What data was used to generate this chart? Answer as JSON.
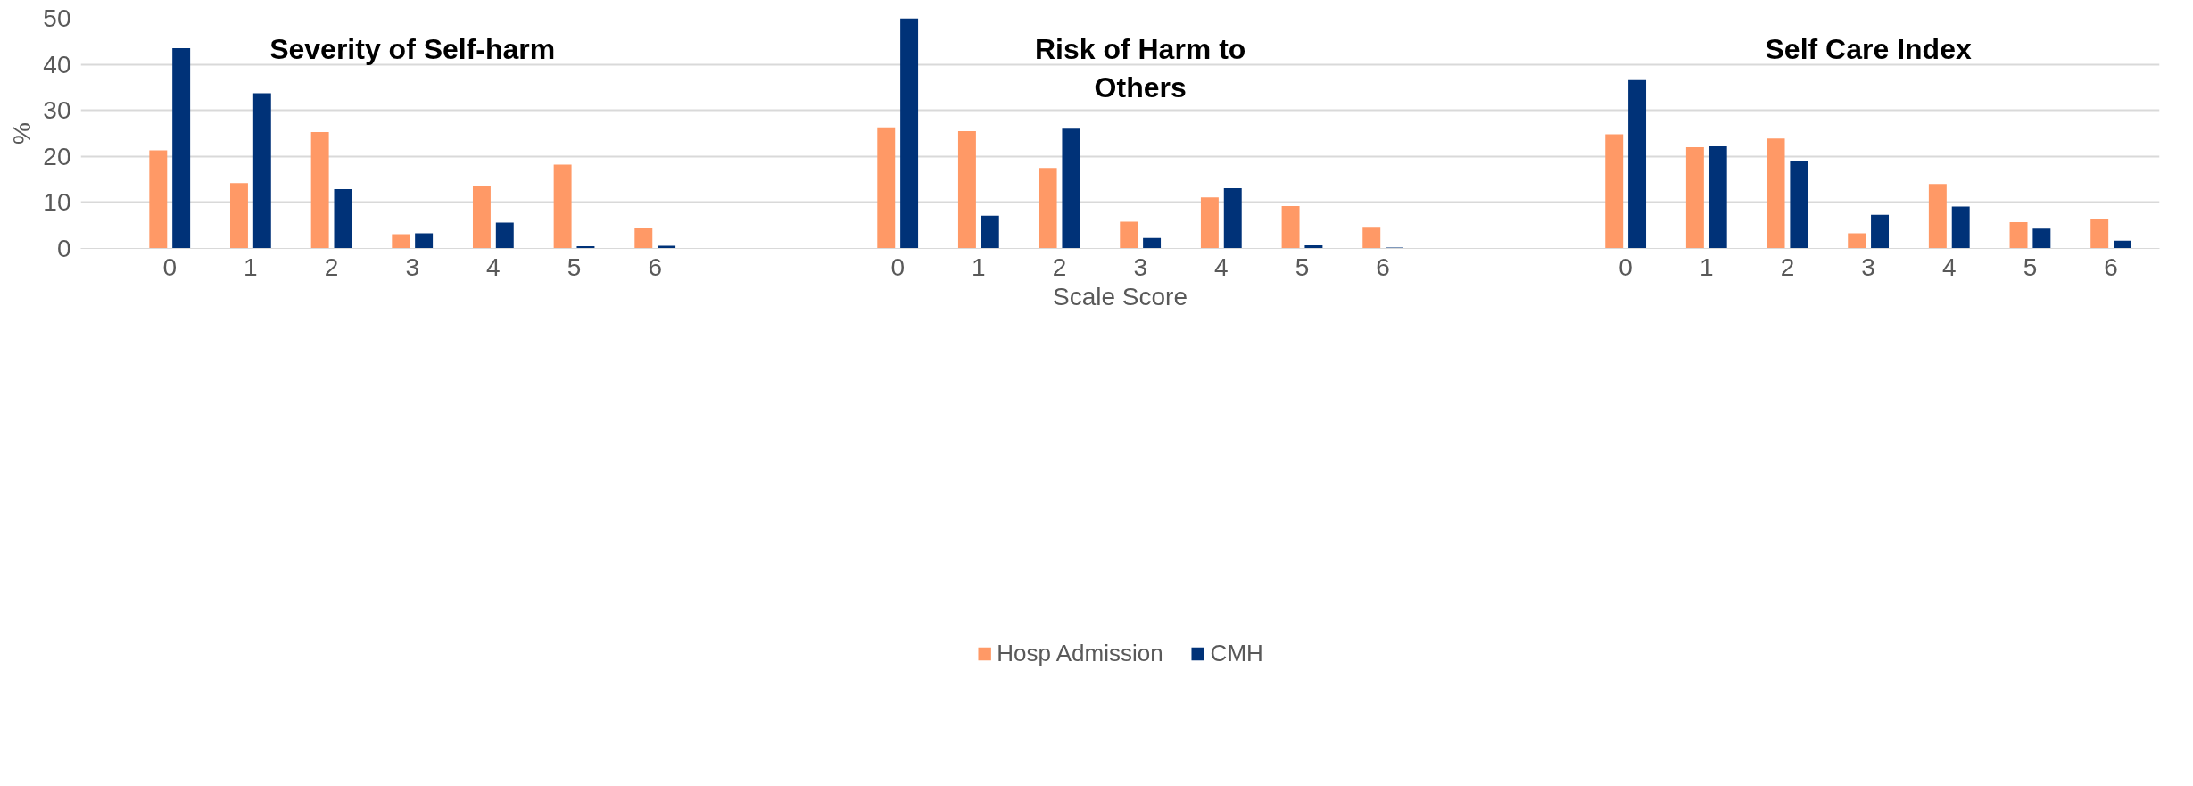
{
  "chart_data": {
    "type": "bar",
    "xlabel": "Scale Score",
    "ylabel": "%",
    "categories": [
      "0",
      "1",
      "2",
      "3",
      "4",
      "5",
      "6",
      null,
      null,
      "0",
      "1",
      "2",
      "3",
      "4",
      "5",
      "6",
      null,
      null,
      "0",
      "1",
      "2",
      "3",
      "4",
      "5",
      "6"
    ],
    "series": [
      {
        "name": "Hosp Admission",
        "color": "#ff9966",
        "values": [
          21.3,
          14.2,
          25.3,
          3.1,
          13.5,
          18.2,
          4.4,
          null,
          null,
          26.3,
          25.5,
          17.5,
          5.8,
          11.1,
          9.2,
          4.7,
          null,
          null,
          24.8,
          22.0,
          23.9,
          3.3,
          14.0,
          5.7,
          6.4
        ]
      },
      {
        "name": "CMH",
        "color": "#003278",
        "values": [
          43.5,
          33.7,
          12.9,
          3.3,
          5.6,
          0.5,
          0.6,
          null,
          null,
          50,
          7.1,
          26.0,
          2.3,
          13.1,
          0.7,
          0.2,
          null,
          null,
          36.6,
          22.2,
          18.9,
          7.3,
          9.1,
          4.3,
          1.7
        ]
      }
    ],
    "annotations": [
      "Severity of Self-harm",
      "Risk of Harm to\nOthers",
      "Self Care Index"
    ],
    "ylim": [
      0,
      50
    ],
    "yticks": [
      0,
      10,
      20,
      30,
      40,
      50
    ],
    "grid": "y",
    "legend": "bottom"
  }
}
